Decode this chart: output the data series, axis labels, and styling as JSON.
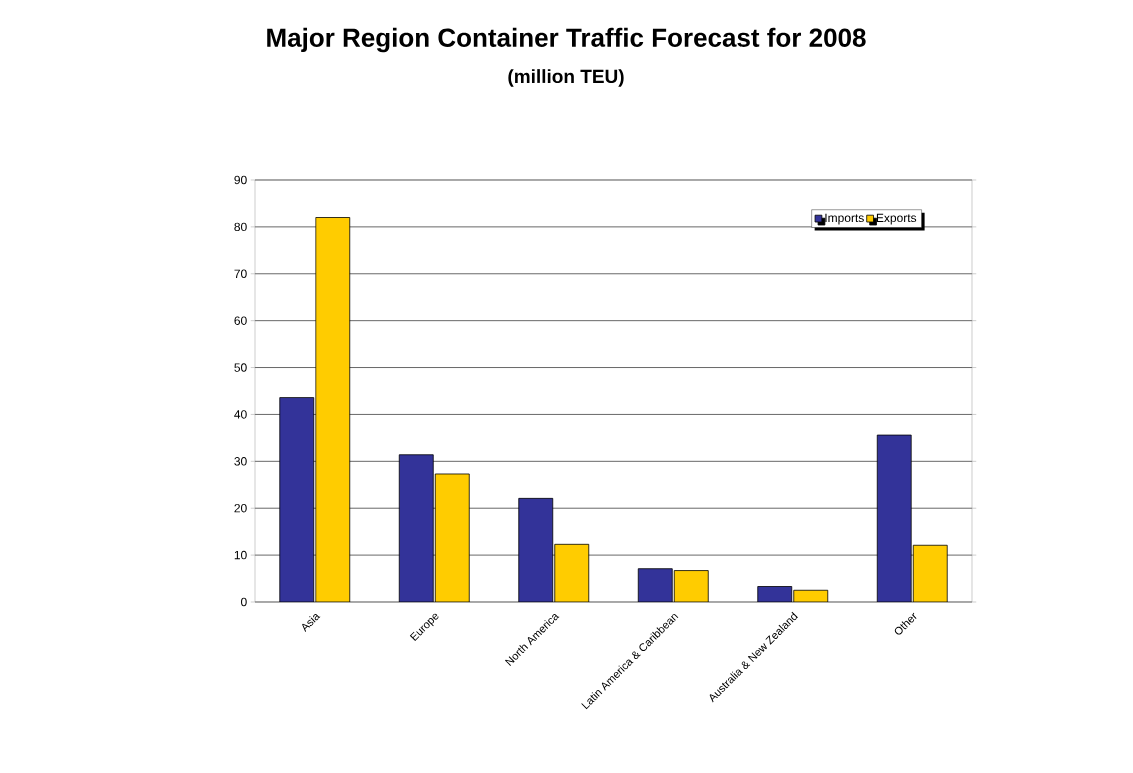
{
  "chart_data": {
    "type": "bar",
    "title": "Major Region Container Traffic Forecast for 2008",
    "subtitle": "(million TEU)",
    "categories": [
      "Asia",
      "Europe",
      "North America",
      "Latin America & Caribbean",
      "Australia & New Zealand",
      "Other"
    ],
    "series": [
      {
        "name": "Imports",
        "color": "#333399",
        "values": [
          43.6,
          31.4,
          22.1,
          7.1,
          3.3,
          35.6
        ]
      },
      {
        "name": "Exports",
        "color": "#ffcc00",
        "values": [
          82.0,
          27.3,
          12.3,
          6.7,
          2.5,
          12.1
        ]
      }
    ],
    "ylim": [
      0,
      90
    ],
    "yticks": [
      0,
      10,
      20,
      30,
      40,
      50,
      60,
      70,
      80,
      90
    ],
    "grid": "y",
    "legend": "top right"
  }
}
